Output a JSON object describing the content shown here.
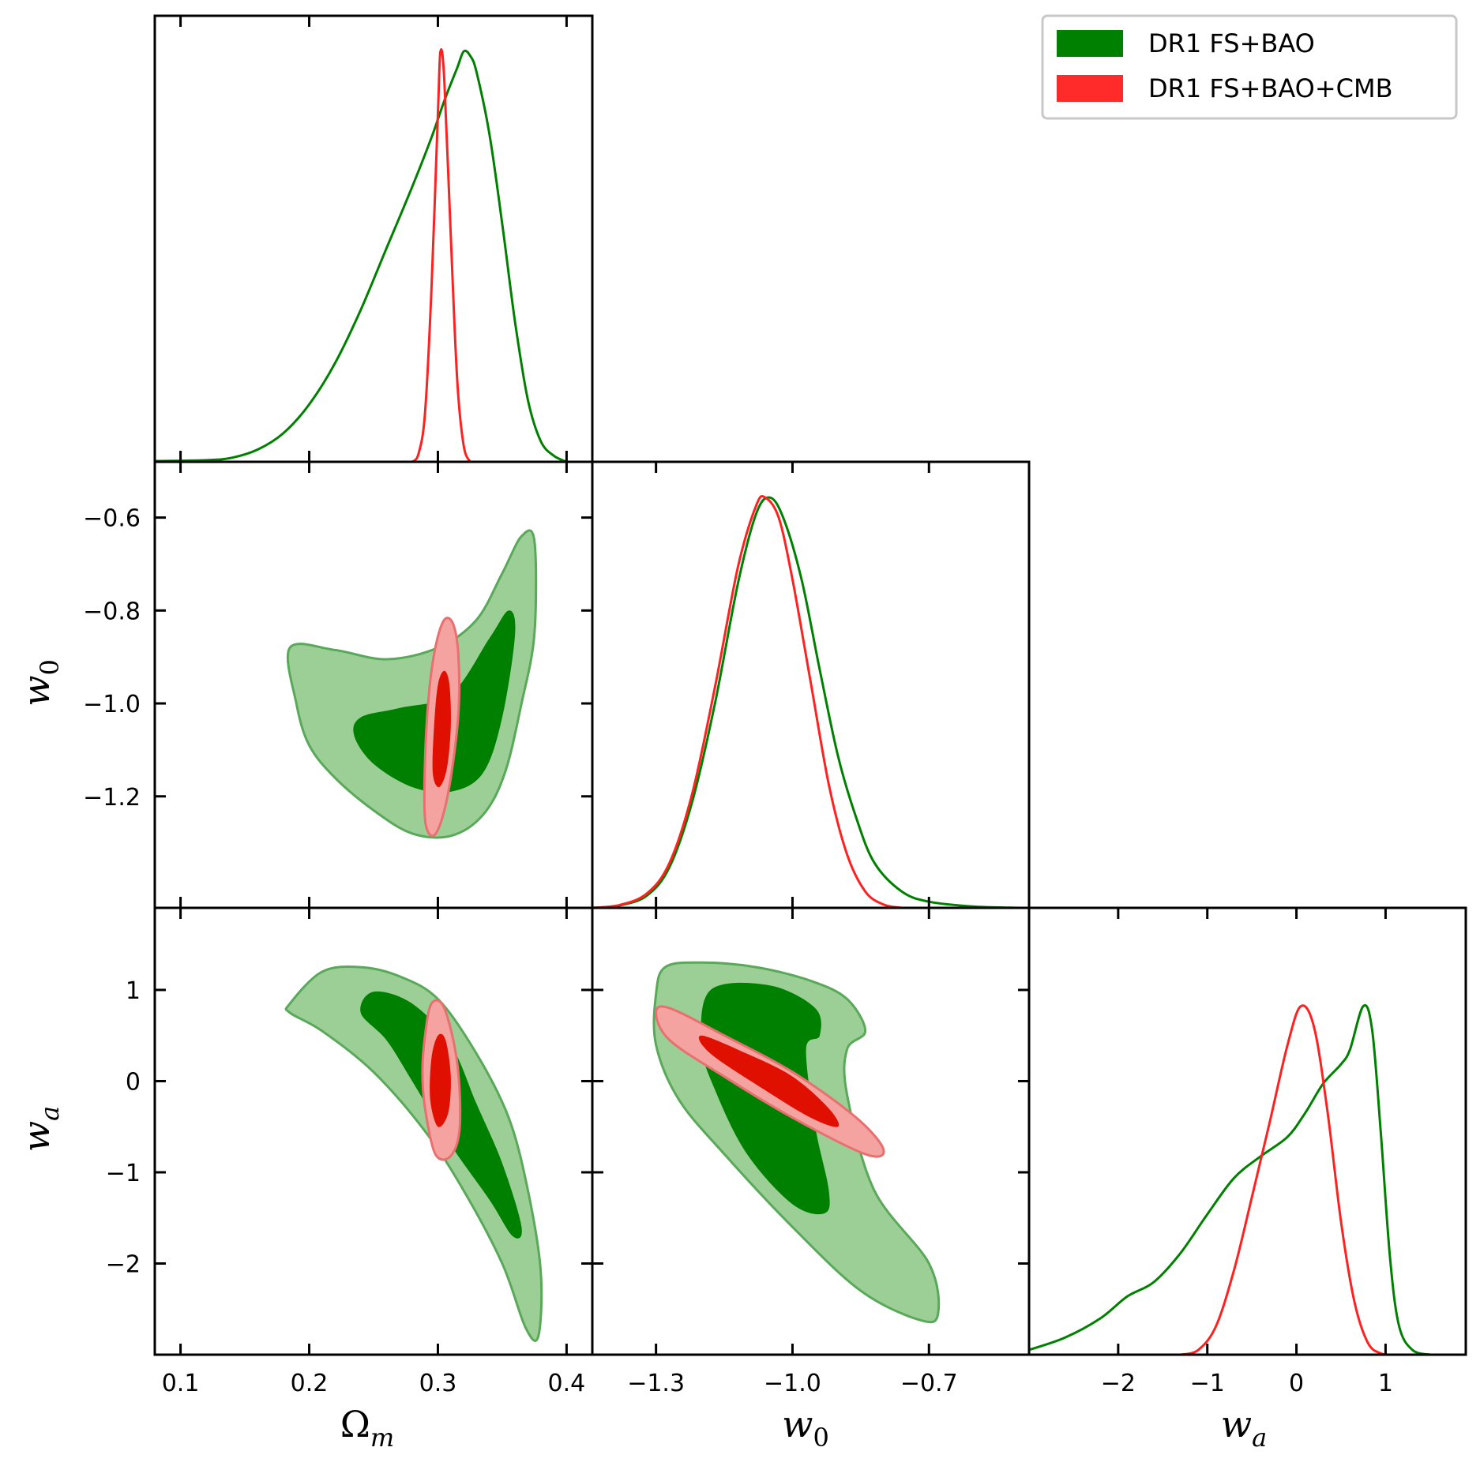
{
  "chart_data": {
    "type": "triangle",
    "parameters": [
      {
        "name": "Omega_m",
        "label": "Ωm",
        "label_base": "Ω",
        "label_sub": "m",
        "range": [
          0.08,
          0.42
        ],
        "ticks": [
          0.1,
          0.2,
          0.3,
          0.4
        ],
        "tick_labels": [
          "0.1",
          "0.2",
          "0.3",
          "0.4"
        ]
      },
      {
        "name": "w0",
        "label": "w0",
        "label_base": "w",
        "label_sub": "0",
        "range": [
          -1.44,
          -0.48
        ],
        "ticks": [
          -1.3,
          -1.0,
          -0.7
        ],
        "tick_labels": [
          "−1.3",
          "−1.0",
          "−0.7"
        ],
        "y_ticks": [
          -0.6,
          -0.8,
          -1.0,
          -1.2
        ],
        "y_tick_labels": [
          "−0.6",
          "−0.8",
          "−1.0",
          "−1.2"
        ]
      },
      {
        "name": "wa",
        "label": "wa",
        "label_base": "w",
        "label_sub": "a",
        "range": [
          -3.0,
          1.9
        ],
        "ticks": [
          -2,
          -1,
          0,
          1
        ],
        "tick_labels": [
          "−2",
          "−1",
          "0",
          "1"
        ]
      }
    ],
    "series": [
      {
        "name": "DR1 FS+BAO",
        "color": "#008000",
        "fill_inner": "#008000",
        "fill_outer": "#9bcf96"
      },
      {
        "name": "DR1 FS+BAO+CMB",
        "color": "#ff2020",
        "fill_inner": "#e01000",
        "fill_outer": "#f4a3a0"
      }
    ],
    "marginals": {
      "Omega_m": {
        "DR1 FS+BAO": [
          [
            0.08,
            0.002
          ],
          [
            0.12,
            0.004
          ],
          [
            0.14,
            0.01
          ],
          [
            0.16,
            0.03
          ],
          [
            0.18,
            0.07
          ],
          [
            0.2,
            0.14
          ],
          [
            0.22,
            0.24
          ],
          [
            0.24,
            0.37
          ],
          [
            0.26,
            0.52
          ],
          [
            0.28,
            0.67
          ],
          [
            0.295,
            0.79
          ],
          [
            0.305,
            0.88
          ],
          [
            0.315,
            0.96
          ],
          [
            0.32,
            1.0
          ],
          [
            0.325,
            0.99
          ],
          [
            0.33,
            0.95
          ],
          [
            0.34,
            0.8
          ],
          [
            0.35,
            0.58
          ],
          [
            0.36,
            0.34
          ],
          [
            0.37,
            0.15
          ],
          [
            0.38,
            0.05
          ],
          [
            0.39,
            0.015
          ],
          [
            0.4,
            0.0
          ]
        ],
        "DR1 FS+BAO+CMB": [
          [
            0.28,
            0.0
          ],
          [
            0.285,
            0.02
          ],
          [
            0.29,
            0.12
          ],
          [
            0.295,
            0.42
          ],
          [
            0.3,
            0.85
          ],
          [
            0.302,
            1.0
          ],
          [
            0.305,
            0.93
          ],
          [
            0.31,
            0.55
          ],
          [
            0.315,
            0.2
          ],
          [
            0.32,
            0.04
          ],
          [
            0.325,
            0.0
          ]
        ]
      },
      "w0": {
        "DR1 FS+BAO": [
          [
            -1.44,
            0.0
          ],
          [
            -1.38,
            0.006
          ],
          [
            -1.32,
            0.03
          ],
          [
            -1.27,
            0.1
          ],
          [
            -1.22,
            0.26
          ],
          [
            -1.17,
            0.5
          ],
          [
            -1.12,
            0.79
          ],
          [
            -1.08,
            0.96
          ],
          [
            -1.05,
            1.0
          ],
          [
            -1.02,
            0.95
          ],
          [
            -0.98,
            0.8
          ],
          [
            -0.94,
            0.58
          ],
          [
            -0.9,
            0.37
          ],
          [
            -0.86,
            0.22
          ],
          [
            -0.82,
            0.11
          ],
          [
            -0.76,
            0.04
          ],
          [
            -0.7,
            0.015
          ],
          [
            -0.6,
            0.003
          ],
          [
            -0.5,
            0.0
          ]
        ],
        "DR1 FS+BAO+CMB": [
          [
            -1.44,
            0.0
          ],
          [
            -1.38,
            0.007
          ],
          [
            -1.32,
            0.035
          ],
          [
            -1.27,
            0.11
          ],
          [
            -1.22,
            0.28
          ],
          [
            -1.17,
            0.54
          ],
          [
            -1.12,
            0.83
          ],
          [
            -1.08,
            0.98
          ],
          [
            -1.06,
            1.0
          ],
          [
            -1.03,
            0.95
          ],
          [
            -1.0,
            0.8
          ],
          [
            -0.96,
            0.55
          ],
          [
            -0.92,
            0.3
          ],
          [
            -0.88,
            0.13
          ],
          [
            -0.84,
            0.04
          ],
          [
            -0.8,
            0.008
          ],
          [
            -0.76,
            0.0
          ]
        ]
      },
      "wa": {
        "DR1 FS+BAO": [
          [
            -3.0,
            0.02
          ],
          [
            -2.6,
            0.07
          ],
          [
            -2.2,
            0.15
          ],
          [
            -1.9,
            0.24
          ],
          [
            -1.6,
            0.3
          ],
          [
            -1.3,
            0.42
          ],
          [
            -1.0,
            0.58
          ],
          [
            -0.7,
            0.73
          ],
          [
            -0.4,
            0.82
          ],
          [
            -0.1,
            0.9
          ],
          [
            0.1,
            1.0
          ],
          [
            0.3,
            1.12
          ],
          [
            0.5,
            1.2
          ],
          [
            0.6,
            1.26
          ],
          [
            0.75,
            1.44
          ],
          [
            0.85,
            1.34
          ],
          [
            0.95,
            0.9
          ],
          [
            1.05,
            0.4
          ],
          [
            1.15,
            0.12
          ],
          [
            1.3,
            0.02
          ],
          [
            1.5,
            0.0
          ]
        ],
        "DR1 FS+BAO+CMB": [
          [
            -1.3,
            0.0
          ],
          [
            -1.1,
            0.02
          ],
          [
            -0.9,
            0.12
          ],
          [
            -0.7,
            0.35
          ],
          [
            -0.5,
            0.65
          ],
          [
            -0.3,
            0.96
          ],
          [
            -0.1,
            1.28
          ],
          [
            0.05,
            1.44
          ],
          [
            0.2,
            1.35
          ],
          [
            0.35,
            1.0
          ],
          [
            0.5,
            0.55
          ],
          [
            0.65,
            0.22
          ],
          [
            0.8,
            0.05
          ],
          [
            0.95,
            0.005
          ],
          [
            1.1,
            0.0
          ]
        ]
      }
    },
    "contours": {
      "w0_vs_Omega_m": {
        "DR1 FS+BAO": {
          "outer": [
            [
              0.185,
              -0.88
            ],
            [
              0.22,
              -0.885
            ],
            [
              0.26,
              -0.905
            ],
            [
              0.3,
              -0.88
            ],
            [
              0.33,
              -0.82
            ],
            [
              0.35,
              -0.72
            ],
            [
              0.365,
              -0.64
            ],
            [
              0.375,
              -0.65
            ],
            [
              0.375,
              -0.85
            ],
            [
              0.365,
              -1.0
            ],
            [
              0.352,
              -1.15
            ],
            [
              0.335,
              -1.24
            ],
            [
              0.31,
              -1.285
            ],
            [
              0.28,
              -1.28
            ],
            [
              0.25,
              -1.23
            ],
            [
              0.22,
              -1.16
            ],
            [
              0.2,
              -1.09
            ],
            [
              0.19,
              -1.0
            ]
          ],
          "inner": [
            [
              0.24,
              -1.03
            ],
            [
              0.27,
              -1.01
            ],
            [
              0.31,
              -0.98
            ],
            [
              0.34,
              -0.86
            ],
            [
              0.355,
              -0.8
            ],
            [
              0.36,
              -0.85
            ],
            [
              0.35,
              -1.03
            ],
            [
              0.335,
              -1.15
            ],
            [
              0.31,
              -1.19
            ],
            [
              0.28,
              -1.18
            ],
            [
              0.25,
              -1.13
            ],
            [
              0.235,
              -1.07
            ]
          ]
        },
        "DR1 FS+BAO+CMB": {
          "outer": [
            [
              0.29,
              -1.25
            ],
            [
              0.29,
              -1.12
            ],
            [
              0.293,
              -0.98
            ],
            [
              0.298,
              -0.88
            ],
            [
              0.305,
              -0.82
            ],
            [
              0.312,
              -0.83
            ],
            [
              0.316,
              -0.9
            ],
            [
              0.316,
              -1.02
            ],
            [
              0.31,
              -1.16
            ],
            [
              0.303,
              -1.25
            ],
            [
              0.296,
              -1.285
            ]
          ],
          "inner": [
            [
              0.296,
              -1.15
            ],
            [
              0.297,
              -1.05
            ],
            [
              0.3,
              -0.96
            ],
            [
              0.305,
              -0.93
            ],
            [
              0.309,
              -0.96
            ],
            [
              0.31,
              -1.05
            ],
            [
              0.307,
              -1.14
            ],
            [
              0.301,
              -1.18
            ]
          ]
        }
      },
      "wa_vs_Omega_m": {
        "DR1 FS+BAO": {
          "outer": [
            [
              0.185,
              0.85
            ],
            [
              0.21,
              1.2
            ],
            [
              0.24,
              1.25
            ],
            [
              0.27,
              1.15
            ],
            [
              0.3,
              0.9
            ],
            [
              0.33,
              0.3
            ],
            [
              0.355,
              -0.4
            ],
            [
              0.37,
              -1.2
            ],
            [
              0.38,
              -2.1
            ],
            [
              0.378,
              -2.8
            ],
            [
              0.368,
              -2.7
            ],
            [
              0.35,
              -2.0
            ],
            [
              0.32,
              -1.2
            ],
            [
              0.29,
              -0.55
            ],
            [
              0.25,
              0.1
            ],
            [
              0.21,
              0.55
            ],
            [
              0.185,
              0.75
            ]
          ],
          "inner": [
            [
              0.24,
              0.75
            ],
            [
              0.25,
              0.98
            ],
            [
              0.28,
              0.85
            ],
            [
              0.31,
              0.4
            ],
            [
              0.33,
              -0.25
            ],
            [
              0.35,
              -0.9
            ],
            [
              0.365,
              -1.6
            ],
            [
              0.358,
              -1.7
            ],
            [
              0.34,
              -1.3
            ],
            [
              0.31,
              -0.7
            ],
            [
              0.28,
              0.0
            ],
            [
              0.26,
              0.45
            ]
          ]
        },
        "DR1 FS+BAO+CMB": {
          "outer": [
            [
              0.29,
              0.5
            ],
            [
              0.295,
              0.85
            ],
            [
              0.305,
              0.8
            ],
            [
              0.315,
              0.2
            ],
            [
              0.317,
              -0.5
            ],
            [
              0.31,
              -0.82
            ],
            [
              0.298,
              -0.8
            ],
            [
              0.29,
              -0.3
            ],
            [
              0.288,
              0.1
            ]
          ],
          "inner": [
            [
              0.295,
              0.25
            ],
            [
              0.3,
              0.5
            ],
            [
              0.306,
              0.45
            ],
            [
              0.31,
              0.05
            ],
            [
              0.308,
              -0.35
            ],
            [
              0.3,
              -0.5
            ],
            [
              0.294,
              -0.2
            ]
          ]
        }
      },
      "wa_vs_w0": {
        "DR1 FS+BAO": {
          "outer": [
            [
              -1.3,
              0.95
            ],
            [
              -1.28,
              1.25
            ],
            [
              -1.2,
              1.3
            ],
            [
              -1.08,
              1.25
            ],
            [
              -0.96,
              1.1
            ],
            [
              -0.88,
              0.9
            ],
            [
              -0.84,
              0.55
            ],
            [
              -0.88,
              0.35
            ],
            [
              -0.88,
              -0.15
            ],
            [
              -0.82,
              -1.2
            ],
            [
              -0.7,
              -2.0
            ],
            [
              -0.68,
              -2.55
            ],
            [
              -0.72,
              -2.62
            ],
            [
              -0.85,
              -2.3
            ],
            [
              -1.0,
              -1.6
            ],
            [
              -1.15,
              -0.8
            ],
            [
              -1.25,
              -0.2
            ],
            [
              -1.3,
              0.4
            ]
          ],
          "inner": [
            [
              -1.2,
              0.4
            ],
            [
              -1.18,
              1.0
            ],
            [
              -1.05,
              1.05
            ],
            [
              -0.95,
              0.8
            ],
            [
              -0.94,
              0.5
            ],
            [
              -0.97,
              0.35
            ],
            [
              -0.95,
              -0.5
            ],
            [
              -0.92,
              -1.2
            ],
            [
              -0.93,
              -1.45
            ],
            [
              -1.0,
              -1.35
            ],
            [
              -1.1,
              -0.8
            ],
            [
              -1.17,
              -0.1
            ]
          ]
        },
        "DR1 FS+BAO+CMB": {
          "outer": [
            [
              -1.3,
              0.75
            ],
            [
              -1.27,
              0.8
            ],
            [
              -1.15,
              0.5
            ],
            [
              -1.0,
              0.1
            ],
            [
              -0.86,
              -0.4
            ],
            [
              -0.8,
              -0.75
            ],
            [
              -0.84,
              -0.8
            ],
            [
              -1.0,
              -0.4
            ],
            [
              -1.15,
              0.05
            ],
            [
              -1.27,
              0.45
            ]
          ],
          "inner": [
            [
              -1.2,
              0.5
            ],
            [
              -1.1,
              0.3
            ],
            [
              -1.0,
              0.05
            ],
            [
              -0.92,
              -0.3
            ],
            [
              -0.9,
              -0.5
            ],
            [
              -0.96,
              -0.4
            ],
            [
              -1.06,
              -0.1
            ],
            [
              -1.18,
              0.3
            ]
          ]
        }
      }
    },
    "legend": {
      "position": "top-right",
      "entries": [
        "DR1 FS+BAO",
        "DR1 FS+BAO+CMB"
      ]
    }
  }
}
